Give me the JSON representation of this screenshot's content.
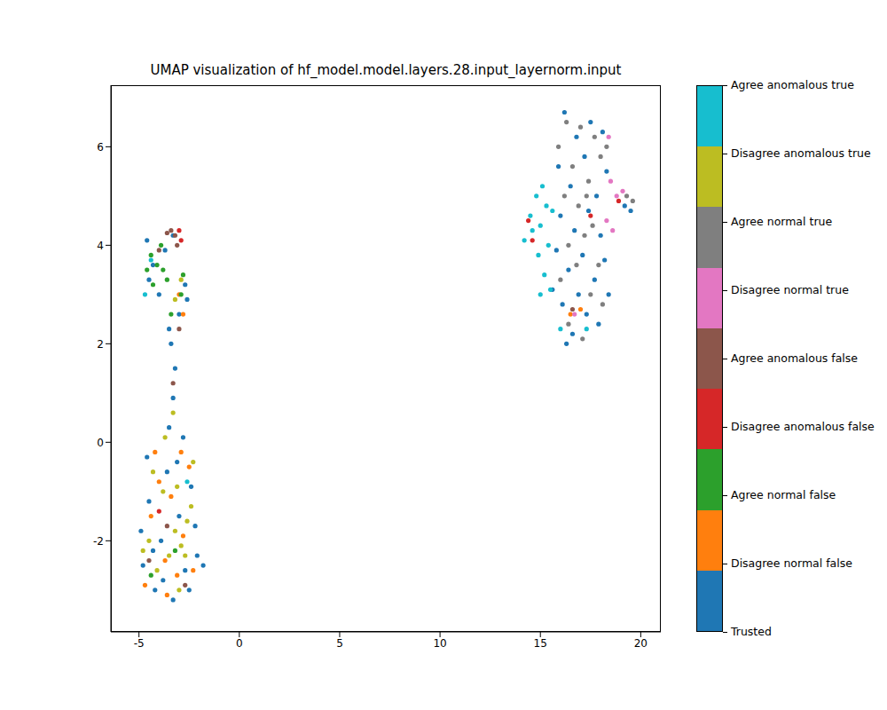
{
  "chart_data": {
    "type": "scatter",
    "title": "UMAP visualization of hf_model.model.layers.28.input_layernorm.input",
    "xlim": [
      -6.4,
      21
    ],
    "xticks": [
      -5,
      0,
      5,
      10,
      15,
      20
    ],
    "ylim": [
      -3.85,
      7.25
    ],
    "yticks": [
      -2,
      0,
      2,
      4,
      6
    ],
    "grid": false,
    "series": [
      {
        "name": "Trusted",
        "color": "#1f77b4",
        "x": [
          -4.8,
          -4.5,
          -4.2,
          -3.9,
          -3.6,
          -3.3,
          -3.0,
          -2.7,
          -2.4,
          -2.1,
          -1.8,
          -4.9,
          -4.6,
          -3.5,
          -2.8,
          -2.2,
          -3.8,
          -4.3,
          -3.1,
          -2.5,
          -3.3,
          -3.2,
          -3.4,
          -3.0,
          -3.5,
          -4.6,
          -4.3,
          -4.0,
          -3.7,
          -2.7,
          -4.5,
          -3.3,
          -2.6,
          16.2,
          16.8,
          17.5,
          18.1,
          15.9,
          16.5,
          17.2,
          17.8,
          18.3,
          16.0,
          16.7,
          17.4,
          18.0,
          15.8,
          16.4,
          17.1,
          17.7,
          18.2,
          16.1,
          16.6,
          17.3,
          17.9,
          16.3,
          18.4,
          19.2,
          19.5,
          15.6,
          16.9
        ],
        "y": [
          -2.5,
          -1.2,
          -3.0,
          -2.0,
          -0.6,
          -3.2,
          -1.5,
          -2.6,
          -0.9,
          -2.3,
          -2.5,
          -1.8,
          -0.3,
          0.3,
          0.1,
          -1.7,
          -2.8,
          -2.2,
          -0.4,
          -3.0,
          0.9,
          1.5,
          2.0,
          2.6,
          2.3,
          4.1,
          3.6,
          3.0,
          3.9,
          3.2,
          3.3,
          4.2,
          2.9,
          6.7,
          6.2,
          6.5,
          6.3,
          5.6,
          5.2,
          5.8,
          5.0,
          5.5,
          4.6,
          4.3,
          4.7,
          4.2,
          3.9,
          3.5,
          3.8,
          3.3,
          3.7,
          2.8,
          2.2,
          2.6,
          2.4,
          2.0,
          3.0,
          4.8,
          4.7,
          3.1,
          3.0
        ]
      },
      {
        "name": "Disagree normal false",
        "color": "#ff7f0e",
        "x": [
          -4.7,
          -4.4,
          -4.0,
          -3.7,
          -3.4,
          -3.1,
          -2.8,
          -2.5,
          -2.3,
          -4.2,
          -3.6,
          -2.9,
          -3.0,
          -2.8,
          16.5,
          17.0
        ],
        "y": [
          -2.9,
          -1.5,
          -0.8,
          -2.4,
          -1.1,
          -2.7,
          -1.9,
          -0.5,
          -2.6,
          -0.2,
          -3.1,
          -0.2,
          3.0,
          2.6,
          2.6,
          2.7
        ]
      },
      {
        "name": "Agree normal false",
        "color": "#2ca02c",
        "x": [
          -4.4,
          -4.1,
          -3.8,
          -3.6,
          -4.3,
          -3.9,
          -2.8,
          -3.4,
          -2.9,
          -4.6,
          -3.2,
          -4.4
        ],
        "y": [
          3.8,
          3.6,
          3.5,
          3.3,
          3.2,
          4.0,
          3.4,
          2.6,
          3.0,
          3.5,
          -2.2,
          -2.7
        ]
      },
      {
        "name": "Disagree anomalous false",
        "color": "#d62728",
        "x": [
          -2.9,
          -3.0,
          14.4,
          14.6,
          17.5,
          18.9,
          -4.0
        ],
        "y": [
          4.1,
          4.3,
          4.5,
          4.1,
          4.6,
          4.9,
          -1.4
        ]
      },
      {
        "name": "Agree anomalous false",
        "color": "#8c564b",
        "x": [
          -3.4,
          -3.2,
          -3.1,
          -3.6,
          -4.0,
          -3.0,
          -3.3,
          -3.6,
          -2.7,
          -4.5,
          16.6
        ],
        "y": [
          4.3,
          4.2,
          4.0,
          4.25,
          3.9,
          2.3,
          1.2,
          -1.7,
          -2.9,
          -2.4,
          2.7
        ]
      },
      {
        "name": "Disagree normal true",
        "color": "#e377c2",
        "x": [
          18.5,
          18.8,
          19.1,
          18.3,
          18.6,
          18.4,
          16.7
        ],
        "y": [
          5.3,
          5.0,
          5.1,
          4.5,
          4.3,
          6.2,
          2.6
        ]
      },
      {
        "name": "Agree normal true",
        "color": "#7f7f7f",
        "x": [
          16.3,
          17.0,
          17.7,
          16.6,
          17.4,
          18.0,
          16.2,
          16.9,
          17.6,
          16.4,
          17.2,
          17.9,
          16.0,
          16.8,
          17.5,
          16.4,
          17.1,
          18.1,
          19.3,
          19.6,
          15.9,
          18.3,
          17.3
        ],
        "y": [
          6.5,
          6.4,
          6.2,
          5.6,
          5.3,
          5.8,
          5.0,
          4.8,
          4.4,
          4.0,
          4.2,
          3.6,
          3.3,
          3.6,
          3.0,
          2.4,
          2.1,
          2.8,
          5.0,
          4.9,
          6.0,
          6.0,
          5.0
        ]
      },
      {
        "name": "Disagree anomalous true",
        "color": "#bcbd22",
        "x": [
          -4.5,
          -4.1,
          -3.8,
          -3.5,
          -3.2,
          -2.9,
          -2.6,
          -2.3,
          -4.3,
          -3.7,
          -3.0,
          -2.7,
          -4.8,
          -3.3,
          -3.2,
          -2.9,
          -3.1,
          -2.4
        ],
        "y": [
          -2.0,
          -2.6,
          -1.0,
          -2.3,
          -1.8,
          -2.1,
          -1.6,
          -0.4,
          -0.6,
          0.1,
          -3.0,
          -2.3,
          -2.2,
          0.6,
          2.9,
          3.3,
          -0.9,
          -1.3
        ]
      },
      {
        "name": "Agree anomalous true",
        "color": "#17becf",
        "x": [
          14.2,
          14.5,
          14.8,
          15.1,
          15.0,
          15.3,
          14.9,
          15.2,
          15.5,
          15.0,
          15.4,
          15.6,
          14.6,
          16.0,
          17.3,
          -4.4,
          -4.7,
          -2.6
        ],
        "y": [
          4.1,
          4.6,
          5.0,
          5.2,
          4.4,
          4.8,
          3.8,
          3.4,
          3.1,
          3.0,
          4.0,
          4.7,
          4.3,
          2.3,
          2.3,
          3.7,
          3.0,
          -0.8
        ]
      }
    ]
  }
}
